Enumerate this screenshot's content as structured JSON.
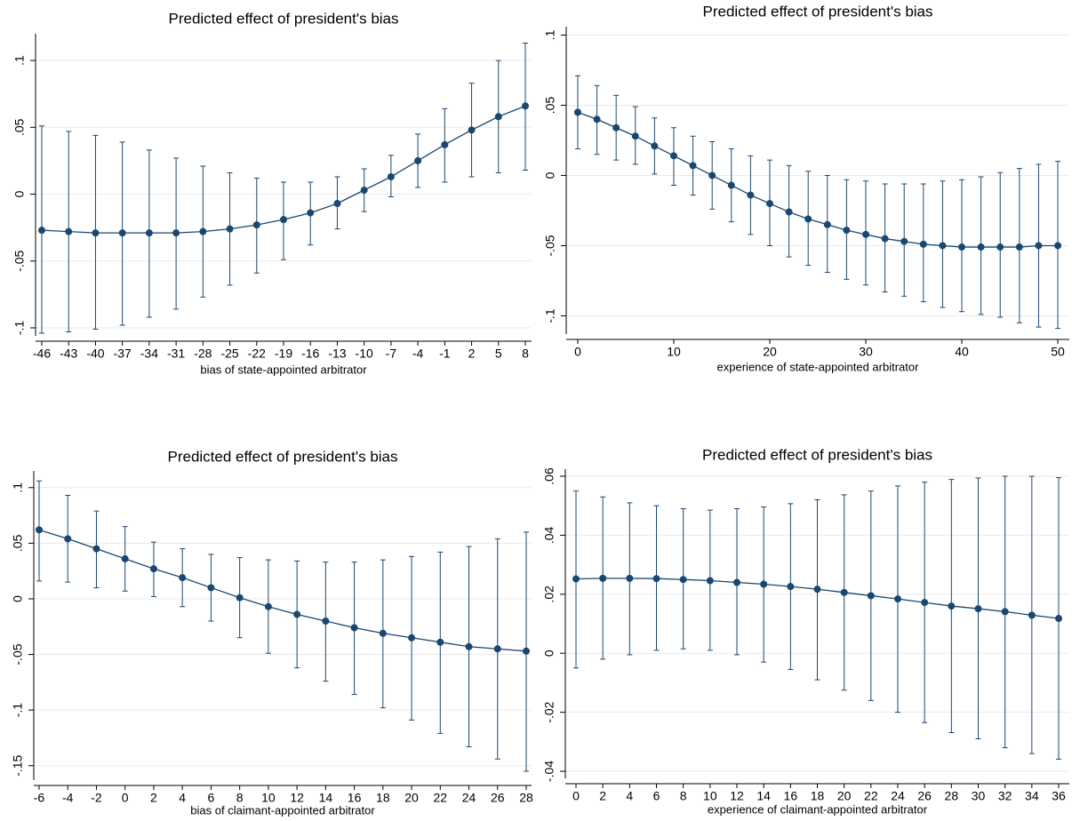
{
  "chart_data": [
    {
      "type": "line",
      "title": "Predicted effect of president's bias",
      "x_label": "bias of state-appointed arbitrator",
      "categories": [
        -46,
        -43,
        -40,
        -37,
        -34,
        -31,
        -28,
        -25,
        -22,
        -19,
        -16,
        -13,
        -10,
        -7,
        -4,
        -1,
        2,
        5,
        8
      ],
      "series": [
        {
          "color": "#1a476f",
          "values": [
            -0.027,
            -0.028,
            -0.029,
            -0.029,
            -0.029,
            -0.029,
            -0.028,
            -0.026,
            -0.023,
            -0.019,
            -0.014,
            -0.007,
            0.003,
            0.013,
            0.025,
            0.037,
            0.048,
            0.058,
            0.066
          ],
          "ci_low": [
            -0.104,
            -0.103,
            -0.101,
            -0.098,
            -0.092,
            -0.086,
            -0.077,
            -0.068,
            -0.059,
            -0.049,
            -0.038,
            -0.026,
            -0.013,
            -0.002,
            0.005,
            0.009,
            0.013,
            0.016,
            0.018
          ],
          "ci_high": [
            0.051,
            0.047,
            0.044,
            0.039,
            0.033,
            0.027,
            0.021,
            0.016,
            0.012,
            0.009,
            0.009,
            0.013,
            0.019,
            0.029,
            0.045,
            0.064,
            0.083,
            0.1,
            0.113
          ]
        }
      ],
      "ylim": [
        -0.106,
        0.12
      ],
      "yticks": [
        {
          "value": -0.1,
          "label": "-.1"
        },
        {
          "value": -0.05,
          "label": "-.05"
        },
        0,
        {
          "value": 0.05,
          "label": ".05"
        },
        {
          "value": 0.1,
          "label": ".1"
        }
      ],
      "grid": true
    },
    {
      "type": "line",
      "title": "Predicted effect of president's bias",
      "x_label": "experience of state-appointed arbitrator",
      "x": [
        0,
        2,
        4,
        6,
        8,
        10,
        12,
        14,
        16,
        18,
        20,
        22,
        24,
        26,
        28,
        30,
        32,
        34,
        36,
        38,
        40,
        42,
        44,
        46,
        48,
        50
      ],
      "xlim": [
        -1.2,
        51.2
      ],
      "xticks": [
        0,
        10,
        20,
        30,
        40,
        50
      ],
      "series": [
        {
          "color": "#1a476f",
          "values": [
            0.045,
            0.04,
            0.034,
            0.028,
            0.021,
            0.014,
            0.007,
            0.0,
            -0.007,
            -0.014,
            -0.02,
            -0.026,
            -0.031,
            -0.035,
            -0.039,
            -0.042,
            -0.045,
            -0.047,
            -0.049,
            -0.05,
            -0.051,
            -0.051,
            -0.051,
            -0.051,
            -0.05,
            -0.05
          ],
          "ci_low": [
            0.019,
            0.015,
            0.011,
            0.008,
            0.001,
            -0.007,
            -0.014,
            -0.024,
            -0.033,
            -0.042,
            -0.05,
            -0.058,
            -0.064,
            -0.069,
            -0.074,
            -0.078,
            -0.083,
            -0.086,
            -0.09,
            -0.094,
            -0.097,
            -0.099,
            -0.101,
            -0.105,
            -0.108,
            -0.109
          ],
          "ci_high": [
            0.071,
            0.064,
            0.057,
            0.049,
            0.041,
            0.034,
            0.028,
            0.024,
            0.019,
            0.014,
            0.011,
            0.007,
            0.003,
            0.0,
            -0.003,
            -0.004,
            -0.006,
            -0.006,
            -0.006,
            -0.004,
            -0.003,
            -0.001,
            0.002,
            0.005,
            0.008,
            0.01
          ]
        }
      ],
      "ylim": [
        -0.113,
        0.106
      ],
      "yticks": [
        {
          "value": -0.1,
          "label": "-.1"
        },
        {
          "value": -0.05,
          "label": "-.05"
        },
        0,
        {
          "value": 0.05,
          "label": ".05"
        },
        {
          "value": 0.1,
          "label": ".1"
        }
      ],
      "grid": true
    },
    {
      "type": "line",
      "title": "Predicted effect of president's bias",
      "x_label": "bias of claimant-appointed arbitrator",
      "categories": [
        -6,
        -4,
        -2,
        0,
        2,
        4,
        6,
        8,
        10,
        12,
        14,
        16,
        18,
        20,
        22,
        24,
        26,
        28
      ],
      "series": [
        {
          "color": "#1a476f",
          "values": [
            0.062,
            0.054,
            0.045,
            0.036,
            0.027,
            0.019,
            0.01,
            0.001,
            -0.007,
            -0.014,
            -0.02,
            -0.026,
            -0.031,
            -0.035,
            -0.039,
            -0.043,
            -0.045,
            -0.047
          ],
          "ci_low": [
            0.016,
            0.015,
            0.01,
            0.007,
            0.002,
            -0.007,
            -0.02,
            -0.035,
            -0.049,
            -0.062,
            -0.074,
            -0.086,
            -0.098,
            -0.109,
            -0.121,
            -0.133,
            -0.144,
            -0.155
          ],
          "ci_high": [
            0.106,
            0.093,
            0.079,
            0.065,
            0.051,
            0.045,
            0.04,
            0.037,
            0.035,
            0.034,
            0.033,
            0.033,
            0.035,
            0.038,
            0.042,
            0.047,
            0.054,
            0.06
          ]
        }
      ],
      "ylim": [
        -0.163,
        0.115
      ],
      "yticks": [
        {
          "value": -0.15,
          "label": "-.15"
        },
        {
          "value": -0.1,
          "label": "-.1"
        },
        {
          "value": -0.05,
          "label": "-.05"
        },
        0,
        {
          "value": 0.05,
          "label": ".05"
        },
        {
          "value": 0.1,
          "label": ".1"
        }
      ],
      "grid": true
    },
    {
      "type": "line",
      "title": "Predicted effect of president's bias",
      "x_label": "experience of claimant-appointed arbitrator",
      "categories": [
        0,
        2,
        4,
        6,
        8,
        10,
        12,
        14,
        16,
        18,
        20,
        22,
        24,
        26,
        28,
        30,
        32,
        34,
        36
      ],
      "series": [
        {
          "color": "#1a476f",
          "values": [
            0.0252,
            0.0254,
            0.0254,
            0.0253,
            0.025,
            0.0246,
            0.024,
            0.0234,
            0.0226,
            0.0217,
            0.0206,
            0.0195,
            0.0184,
            0.0172,
            0.016,
            0.0151,
            0.0141,
            0.0129,
            0.0118
          ],
          "ci_low": [
            -0.005,
            -0.002,
            -0.0005,
            0.001,
            0.0015,
            0.001,
            -0.0005,
            -0.003,
            -0.0055,
            -0.009,
            -0.0125,
            -0.016,
            -0.02,
            -0.0235,
            -0.0269,
            -0.029,
            -0.032,
            -0.034,
            -0.0359
          ],
          "ci_high": [
            0.055,
            0.053,
            0.051,
            0.05,
            0.049,
            0.0485,
            0.049,
            0.0496,
            0.0507,
            0.052,
            0.0537,
            0.055,
            0.0567,
            0.058,
            0.0589,
            0.0594,
            0.06,
            0.06,
            0.0595
          ]
        }
      ],
      "ylim": [
        -0.0424,
        0.0624
      ],
      "yticks": [
        {
          "value": -0.04,
          "label": "-.04"
        },
        {
          "value": -0.02,
          "label": "-.02"
        },
        0,
        {
          "value": 0.02,
          "label": ".02"
        },
        {
          "value": 0.04,
          "label": ".04"
        },
        {
          "value": 0.06,
          "label": ".06"
        }
      ],
      "grid": true
    }
  ]
}
